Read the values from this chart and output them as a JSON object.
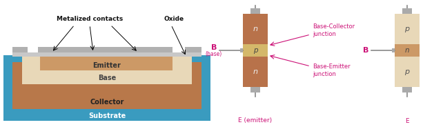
{
  "bg_color": "#ffffff",
  "substrate_color": "#3a9bbf",
  "collector_color": "#b8784a",
  "base_color": "#e8d8b8",
  "emitter_color": "#cc9966",
  "metal_color": "#b0b0b0",
  "oxide_color": "#c8c8c8",
  "npn_n_color": "#b8724a",
  "npn_p_color": "#d4b86a",
  "pnp_p_color": "#e8d8b8",
  "pnp_n_color": "#cc9966",
  "wire_color": "#888888",
  "connector_color": "#aaaaaa",
  "text_color_black": "#222222",
  "text_color_magenta": "#cc1177",
  "label_emitter": "Emitter",
  "label_base": "Base",
  "label_collector": "Collector",
  "label_substrate": "Substrate",
  "label_metalized": "Metalized contacts",
  "label_oxide": "Oxide",
  "label_B": "B",
  "label_base2": "(base)",
  "label_E": "E (emitter)",
  "label_E2": "E",
  "label_B2": "B",
  "label_n1": "n",
  "label_p": "p",
  "label_n2": "n",
  "label_p1": "p",
  "label_n3": "n",
  "label_p2": "p",
  "label_bc_junction": "Base-Collector\njunction",
  "label_be_junction": "Base-Emitter\njunction"
}
